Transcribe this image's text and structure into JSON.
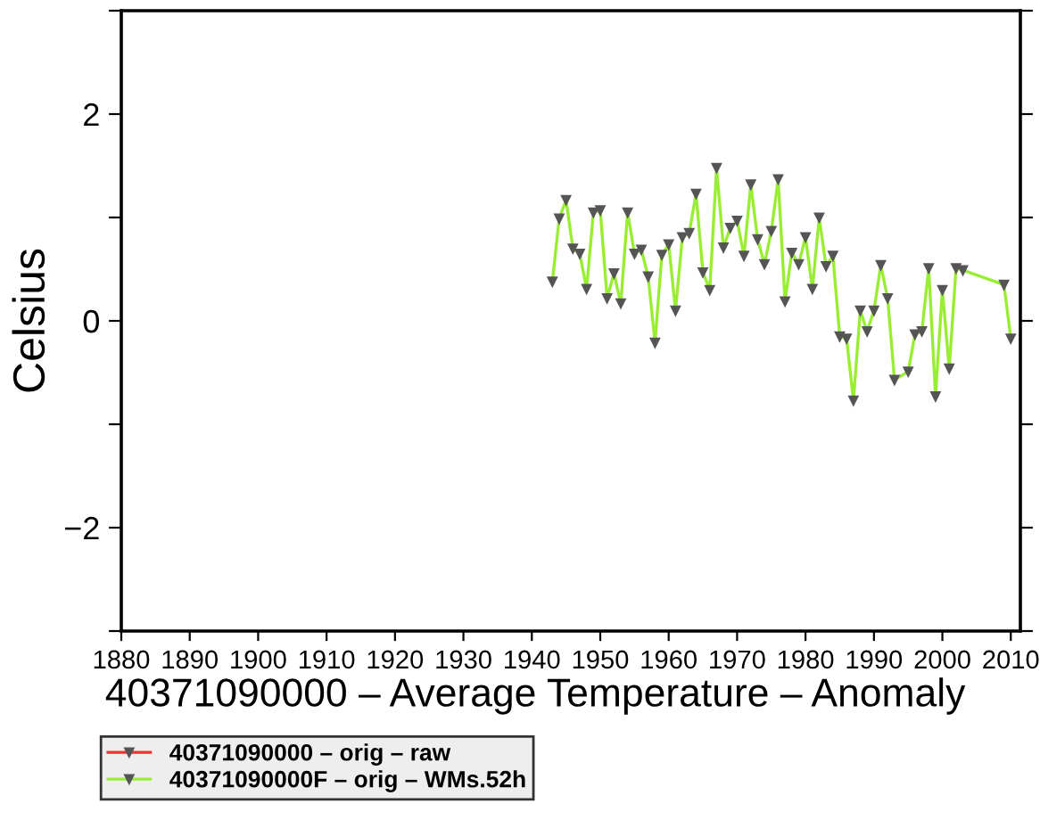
{
  "chart_data": {
    "type": "line",
    "xlabel": "40371090000 – Average Temperature – Anomaly",
    "ylabel": "Celsius",
    "xlim": [
      1880,
      2011.4
    ],
    "xticks": [
      1880,
      1890,
      1900,
      1910,
      1920,
      1930,
      1940,
      1950,
      1960,
      1970,
      1980,
      1990,
      2000,
      2010
    ],
    "ylim": [
      -3,
      3
    ],
    "yticks": [
      {
        "value": -3,
        "label": null
      },
      {
        "value": -2,
        "label": "−2"
      },
      {
        "value": -1,
        "label": null
      },
      0,
      {
        "value": 1,
        "label": null
      },
      2,
      {
        "value": 3,
        "label": null
      }
    ],
    "grid": false,
    "legend": "bottom",
    "marker": "triangle",
    "line_style": "solid",
    "series": [
      {
        "name": "40371090000 – orig – raw",
        "color": "#ee3333"
      },
      {
        "name": "40371090000F – orig – WMs.52h",
        "color": "#99ee33",
        "x": [
          1943,
          1944,
          1945,
          1946,
          1947,
          1948,
          1949,
          1950,
          1951,
          1952,
          1953,
          1954,
          1955,
          1956,
          1957,
          1958,
          1959,
          1960,
          1961,
          1962,
          1963,
          1964,
          1965,
          1966,
          1967,
          1968,
          1969,
          1970,
          1971,
          1972,
          1973,
          1974,
          1975,
          1976,
          1977,
          1978,
          1979,
          1980,
          1981,
          1982,
          1983,
          1984,
          1985,
          1986,
          1987,
          1988,
          1989,
          1990,
          1991,
          1992,
          1993,
          1995,
          1996,
          1997,
          1998,
          1999,
          2000,
          2001,
          2002,
          2003,
          2009,
          2010
        ],
        "values": [
          0.38,
          0.99,
          1.17,
          0.7,
          0.65,
          0.31,
          1.05,
          1.07,
          0.22,
          0.46,
          0.17,
          1.05,
          0.65,
          0.69,
          0.43,
          -0.21,
          0.64,
          0.74,
          0.1,
          0.81,
          0.85,
          1.23,
          0.47,
          0.3,
          1.48,
          0.71,
          0.9,
          0.97,
          0.63,
          1.32,
          0.79,
          0.55,
          0.87,
          1.37,
          0.19,
          0.66,
          0.55,
          0.81,
          0.31,
          1.0,
          0.53,
          0.63,
          -0.15,
          -0.17,
          -0.77,
          0.1,
          -0.1,
          0.1,
          0.54,
          0.22,
          -0.57,
          -0.49,
          -0.13,
          -0.1,
          0.51,
          -0.73,
          0.3,
          -0.46,
          0.51,
          0.49,
          0.35,
          -0.17
        ]
      }
    ]
  }
}
